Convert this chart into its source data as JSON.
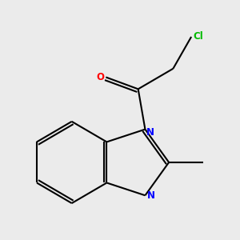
{
  "background_color": "#ebebeb",
  "bond_color": "#000000",
  "atom_colors": {
    "N": "#0000ff",
    "O": "#ff0000",
    "Cl": "#00bb00",
    "C": "#000000"
  },
  "line_width": 1.5,
  "figsize": [
    3.0,
    3.0
  ],
  "dpi": 100
}
